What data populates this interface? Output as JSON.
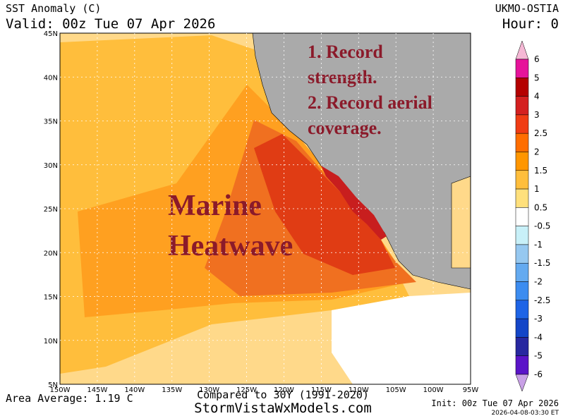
{
  "header": {
    "title": "SST Anomaly (C)",
    "valid": "Valid: 00z Tue 07 Apr 2026",
    "model": "UKMO-OSTIA",
    "hour": "Hour: 0"
  },
  "map": {
    "lat_labels": [
      "45N",
      "40N",
      "35N",
      "30N",
      "25N",
      "20N",
      "15N",
      "10N",
      "5N"
    ],
    "lon_labels": [
      "150W",
      "145W",
      "140W",
      "135W",
      "130W",
      "125W",
      "120W",
      "115W",
      "110W",
      "105W",
      "100W",
      "95W"
    ],
    "annotations": {
      "points": [
        "1. Record",
        "strength.",
        "2. Record aerial",
        "coverage."
      ],
      "headline": [
        "Marine",
        "Heatwave"
      ]
    }
  },
  "colorbar": {
    "labels": [
      "6",
      "5",
      "4",
      "3",
      "2.5",
      "2",
      "1.5",
      "1",
      "0.5",
      "-0.5",
      "-1",
      "-1.5",
      "-2",
      "-2.5",
      "-3",
      "-4",
      "-5",
      "-6"
    ],
    "colors": [
      "#f5b8d5",
      "#e6139a",
      "#b40000",
      "#d42020",
      "#f03c14",
      "#ff6e00",
      "#ff9600",
      "#ffbe3c",
      "#ffe07c",
      "#ffffff",
      "#c8f0f8",
      "#96c8f0",
      "#64aaf0",
      "#3c8cf0",
      "#1e64e6",
      "#1446c8",
      "#2828a0",
      "#5a14c8",
      "#c8a0e6"
    ]
  },
  "footer": {
    "area_average": "Area Average: 1.19 C",
    "compared": "Compared to 30Y (1991-2020)",
    "site": "StormVistaWxModels.com",
    "init": "Init: 00z Tue 07 Apr 2026",
    "stamp": "2026-04-08-03:30 ET"
  }
}
